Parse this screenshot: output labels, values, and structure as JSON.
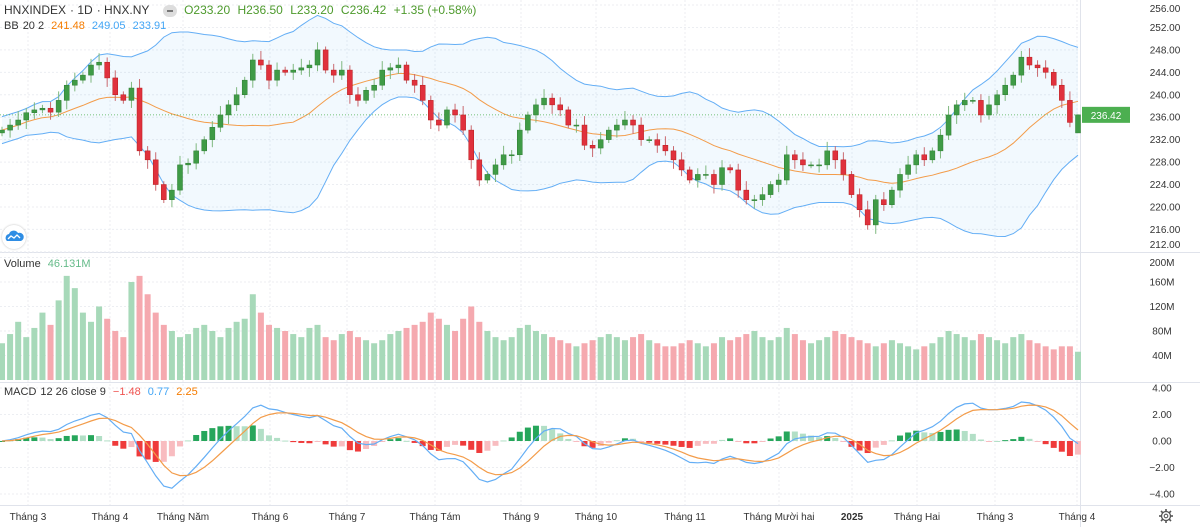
{
  "header": {
    "symbol": "HNXINDEX",
    "interval": "1D",
    "exchange": "HNX.NY",
    "open": "O233.20",
    "high": "H236.50",
    "low": "L233.20",
    "close": "C236.42",
    "change": "+1.35 (+0.58%)"
  },
  "bb_legend": {
    "name": "BB",
    "params": "20 2",
    "basis": "241.48",
    "upper": "249.05",
    "lower": "233.91"
  },
  "volume_legend": {
    "name": "Volume",
    "value": "46.131M"
  },
  "macd_legend": {
    "name": "MACD",
    "params": "12 26 close 9",
    "hist": "−1.48",
    "macd": "0.77",
    "signal": "2.25"
  },
  "last_price_label": "236.42",
  "icons": {
    "logo": "tradingview-cloud-icon",
    "settings": "gear-icon",
    "hide": "minus-icon"
  },
  "colors": {
    "up": "#3f9b46",
    "down": "#e0313d",
    "bb_band": "#64aef5",
    "bb_basis": "#f39c4a",
    "macd": "#64aef5",
    "signal": "#f39c4a"
  },
  "chart_data": {
    "type": "candlestick",
    "price_axis": {
      "ticks": [
        "256.00",
        "252.00",
        "248.00",
        "244.00",
        "240.00",
        "236.00",
        "232.00",
        "228.00",
        "224.00",
        "220.00",
        "216.00",
        "212.00"
      ],
      "ylim": [
        212,
        256
      ]
    },
    "volume_axis": {
      "ticks": [
        "200M",
        "160M",
        "120M",
        "80M",
        "40M"
      ],
      "ylim": [
        0,
        200
      ]
    },
    "macd_axis": {
      "ticks": [
        "4.00",
        "2.00",
        "0.00",
        "−2.00",
        "−4.00"
      ],
      "ylim": [
        -4.4,
        4.4
      ]
    },
    "time_ticks": [
      "Tháng 3",
      "Tháng 4",
      "Tháng Năm",
      "Tháng 6",
      "Tháng 7",
      "Tháng Tám",
      "Tháng 9",
      "Tháng 10",
      "Tháng 11",
      "Tháng Mười hai",
      "2025",
      "Tháng Hai",
      "Tháng 3",
      "Tháng 4"
    ],
    "closes": [
      233.7,
      234.6,
      235.5,
      236.8,
      237.3,
      237.6,
      236.9,
      239,
      241.7,
      242.6,
      243.5,
      245.3,
      245.8,
      243,
      240,
      239,
      241.2,
      230,
      228.4,
      224,
      221.3,
      223,
      227.5,
      227.8,
      230,
      232,
      234.2,
      236.4,
      238.2,
      240,
      242.6,
      246.2,
      245.3,
      242.6,
      244.4,
      244,
      244.4,
      244.8,
      245.3,
      248,
      244.4,
      243.5,
      244.4,
      240,
      239,
      240.8,
      241.7,
      244.4,
      244.8,
      245.3,
      242.6,
      241.7,
      239,
      235.5,
      234.6,
      237.3,
      236.4,
      233.7,
      228.4,
      224.8,
      225.8,
      227.5,
      229.3,
      229.3,
      233.7,
      236.4,
      238.2,
      239.4,
      238.2,
      237.3,
      234.6,
      234.6,
      231,
      230.5,
      232,
      233.7,
      234.6,
      235.5,
      234.6,
      232,
      232,
      231,
      230,
      228.4,
      226.6,
      224.8,
      225.8,
      225.8,
      224,
      227,
      226.6,
      223,
      221.3,
      221.3,
      222.2,
      224,
      224.8,
      229.3,
      228.4,
      227.5,
      227.5,
      227.5,
      230,
      228.4,
      225.8,
      222.2,
      219.5,
      216.8,
      221.3,
      220.4,
      223,
      225.8,
      227.5,
      229.3,
      228.4,
      230,
      232.8,
      236.4,
      238.2,
      239,
      239,
      236.4,
      238.2,
      240,
      241.7,
      243.5,
      246.7,
      245.3,
      244.8,
      244,
      241.7,
      239,
      235.07,
      236.42
    ],
    "last_open": 233.2,
    "last_high": 236.5,
    "last_low": 233.2,
    "volumes_m": [
      60,
      75,
      95,
      70,
      85,
      110,
      90,
      130,
      170,
      150,
      110,
      95,
      120,
      100,
      80,
      70,
      160,
      170,
      140,
      110,
      90,
      80,
      70,
      75,
      85,
      90,
      80,
      70,
      85,
      95,
      100,
      140,
      110,
      90,
      85,
      80,
      75,
      70,
      85,
      90,
      70,
      65,
      75,
      80,
      70,
      65,
      60,
      65,
      75,
      80,
      85,
      90,
      95,
      110,
      100,
      90,
      80,
      100,
      120,
      95,
      80,
      70,
      65,
      70,
      85,
      90,
      80,
      75,
      70,
      65,
      60,
      55,
      60,
      65,
      70,
      75,
      70,
      65,
      70,
      75,
      65,
      60,
      55,
      55,
      60,
      65,
      60,
      55,
      60,
      70,
      65,
      70,
      75,
      80,
      70,
      65,
      70,
      85,
      75,
      65,
      60,
      65,
      70,
      80,
      75,
      70,
      65,
      60,
      55,
      60,
      65,
      60,
      55,
      50,
      55,
      60,
      70,
      80,
      75,
      70,
      65,
      75,
      70,
      65,
      60,
      70,
      75,
      65,
      60,
      55,
      50,
      55,
      55,
      46.131
    ]
  }
}
